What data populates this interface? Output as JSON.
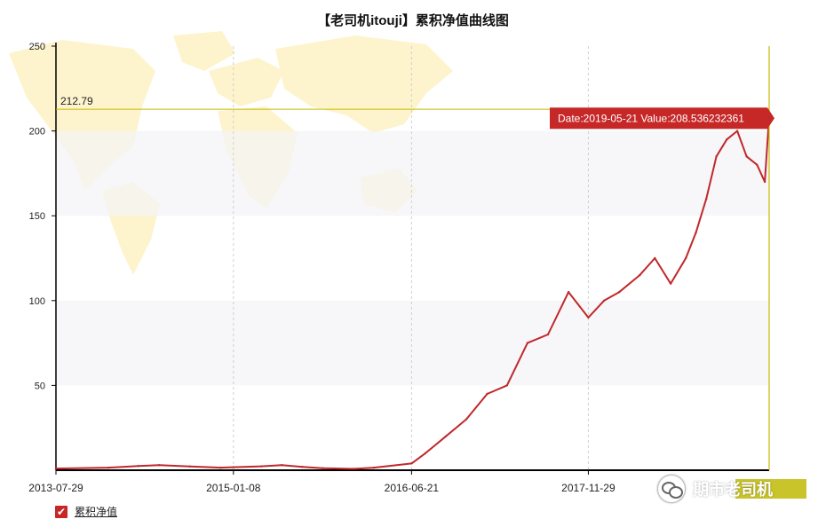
{
  "chart_data": {
    "type": "line",
    "title": "【老司机itouji】累积净值曲线图",
    "x_tick_labels": [
      "2013-07-29",
      "2015-01-08",
      "2016-06-21",
      "2017-11-29"
    ],
    "y_ticks": [
      50,
      100,
      150,
      200,
      250
    ],
    "ylim": [
      0,
      250
    ],
    "xlim": [
      "2013-07-29",
      "2019-05-21"
    ],
    "grid": "vertical dashed lines at x ticks, alternating horizontal bands",
    "legend_position": "bottom-left",
    "reference_line_label": "212.79",
    "reference_line_value": 212.79,
    "tooltip_text": "Date:2019-05-21  Value:208.536232361",
    "series": [
      {
        "name": "累积净值",
        "color": "#c0282a",
        "x": [
          "2013-07-29",
          "2014-01-01",
          "2014-04-01",
          "2014-06-01",
          "2014-09-01",
          "2014-12-01",
          "2015-01-08",
          "2015-04-01",
          "2015-06-01",
          "2015-08-01",
          "2015-10-01",
          "2016-01-01",
          "2016-03-01",
          "2016-06-21",
          "2016-08-01",
          "2016-10-01",
          "2016-12-01",
          "2017-02-01",
          "2017-04-01",
          "2017-06-01",
          "2017-08-01",
          "2017-10-01",
          "2017-11-29",
          "2018-01-15",
          "2018-03-01",
          "2018-05-01",
          "2018-06-15",
          "2018-08-01",
          "2018-09-15",
          "2018-10-15",
          "2018-11-15",
          "2018-12-15",
          "2019-01-15",
          "2019-02-15",
          "2019-03-15",
          "2019-04-15",
          "2019-05-08",
          "2019-05-21"
        ],
        "values": [
          1.0,
          1.5,
          2.5,
          3.0,
          2.2,
          1.5,
          1.8,
          2.3,
          3.0,
          2.0,
          1.2,
          0.8,
          1.5,
          4.0,
          10.0,
          20.0,
          30.0,
          45.0,
          50.0,
          75.0,
          80.0,
          105.0,
          90.0,
          100.0,
          105.0,
          115.0,
          125.0,
          110.0,
          125.0,
          140.0,
          160.0,
          185.0,
          195.0,
          200.0,
          185.0,
          180.0,
          170.0,
          208.54
        ]
      }
    ]
  },
  "legend": {
    "label": "累积净值",
    "checked": true
  },
  "watermark": {
    "text": "期市老司机",
    "icon": "wechat-icon"
  },
  "colors": {
    "line": "#c0282a",
    "reference_line": "#c9b800",
    "tooltip_bg": "#c62828",
    "axis": "#000000",
    "map_bg": "#fdf3c8"
  }
}
